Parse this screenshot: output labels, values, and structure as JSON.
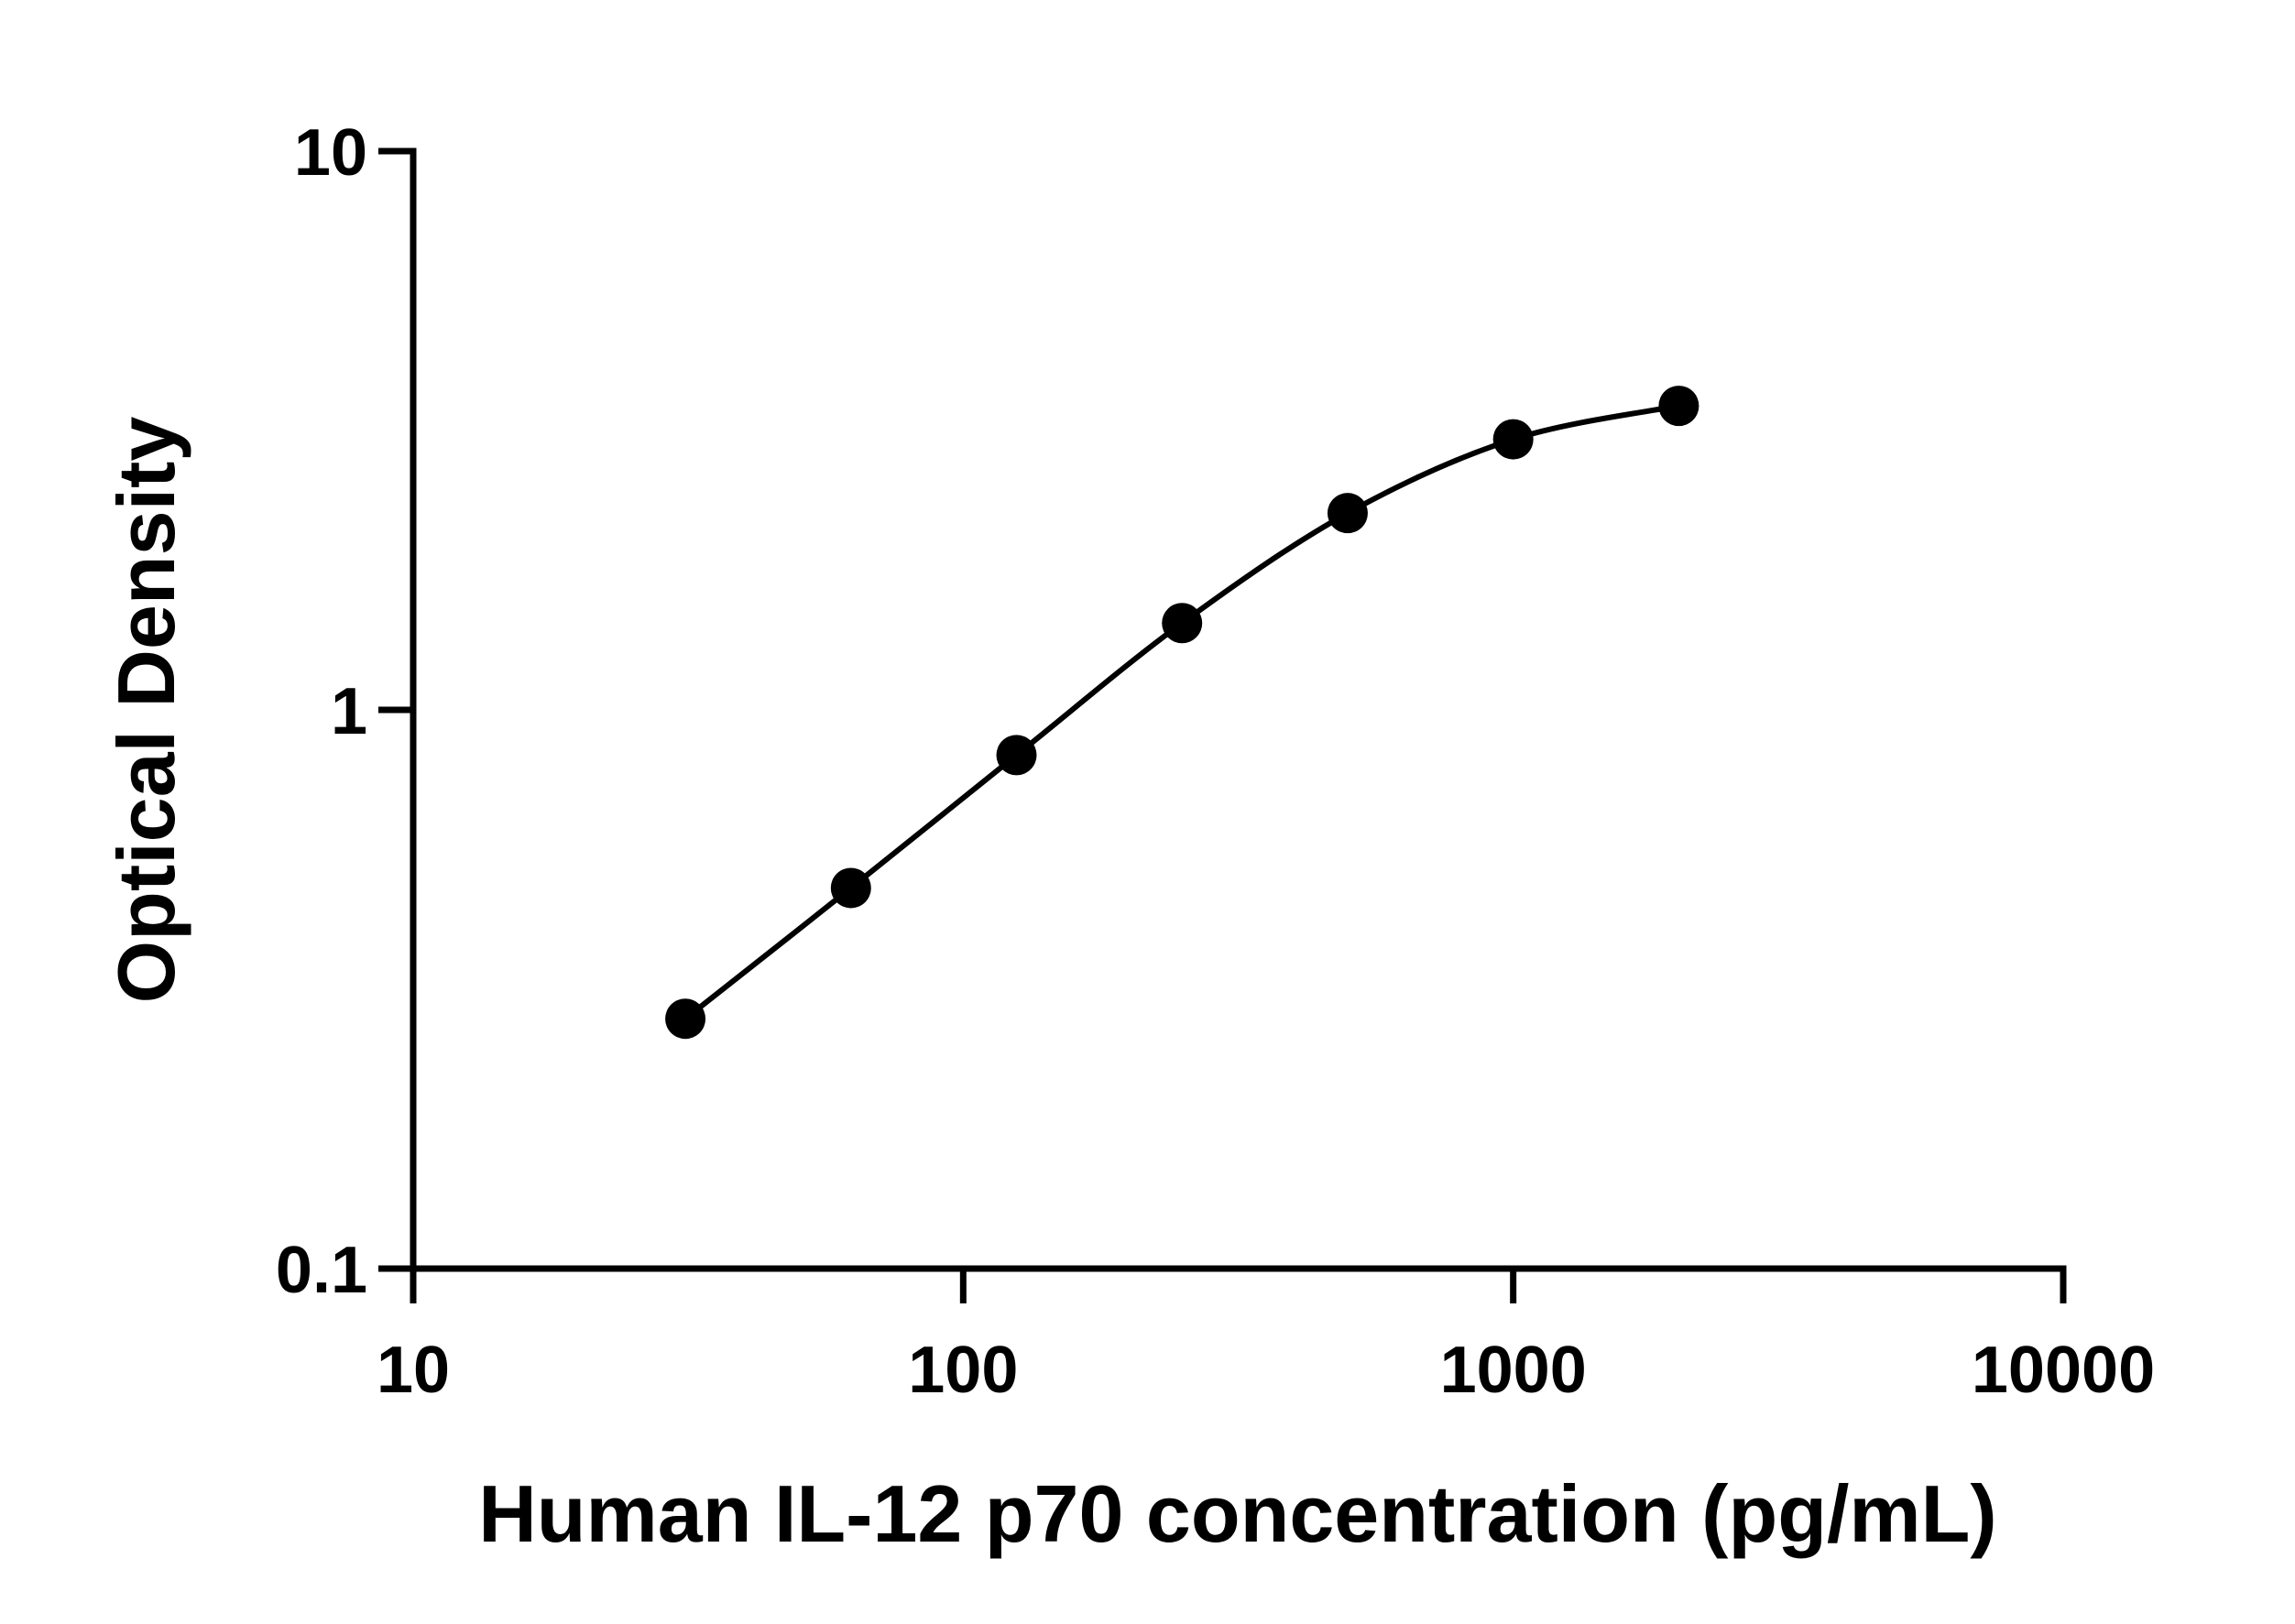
{
  "chart_data": {
    "type": "scatter",
    "xlabel": "Human IL-12 p70 concentration (pg/mL)",
    "ylabel": "Optical Density",
    "x_scale": "log",
    "y_scale": "log",
    "xlim": [
      10,
      10000
    ],
    "ylim": [
      0.1,
      10
    ],
    "x_ticks": [
      {
        "value": 10,
        "label": "10"
      },
      {
        "value": 100,
        "label": "100"
      },
      {
        "value": 1000,
        "label": "1000"
      },
      {
        "value": 10000,
        "label": "10000"
      }
    ],
    "y_ticks": [
      {
        "value": 0.1,
        "label": "0.1"
      },
      {
        "value": 1,
        "label": "1"
      },
      {
        "value": 10,
        "label": "10"
      }
    ],
    "grid": false,
    "series": [
      {
        "points": [
          {
            "x": 31.25,
            "y": 0.28
          },
          {
            "x": 62.5,
            "y": 0.48
          },
          {
            "x": 125,
            "y": 0.83
          },
          {
            "x": 250,
            "y": 1.43
          },
          {
            "x": 500,
            "y": 2.25
          },
          {
            "x": 1000,
            "y": 3.05
          },
          {
            "x": 2000,
            "y": 3.5
          }
        ],
        "fit": "4PL curve"
      }
    ]
  }
}
